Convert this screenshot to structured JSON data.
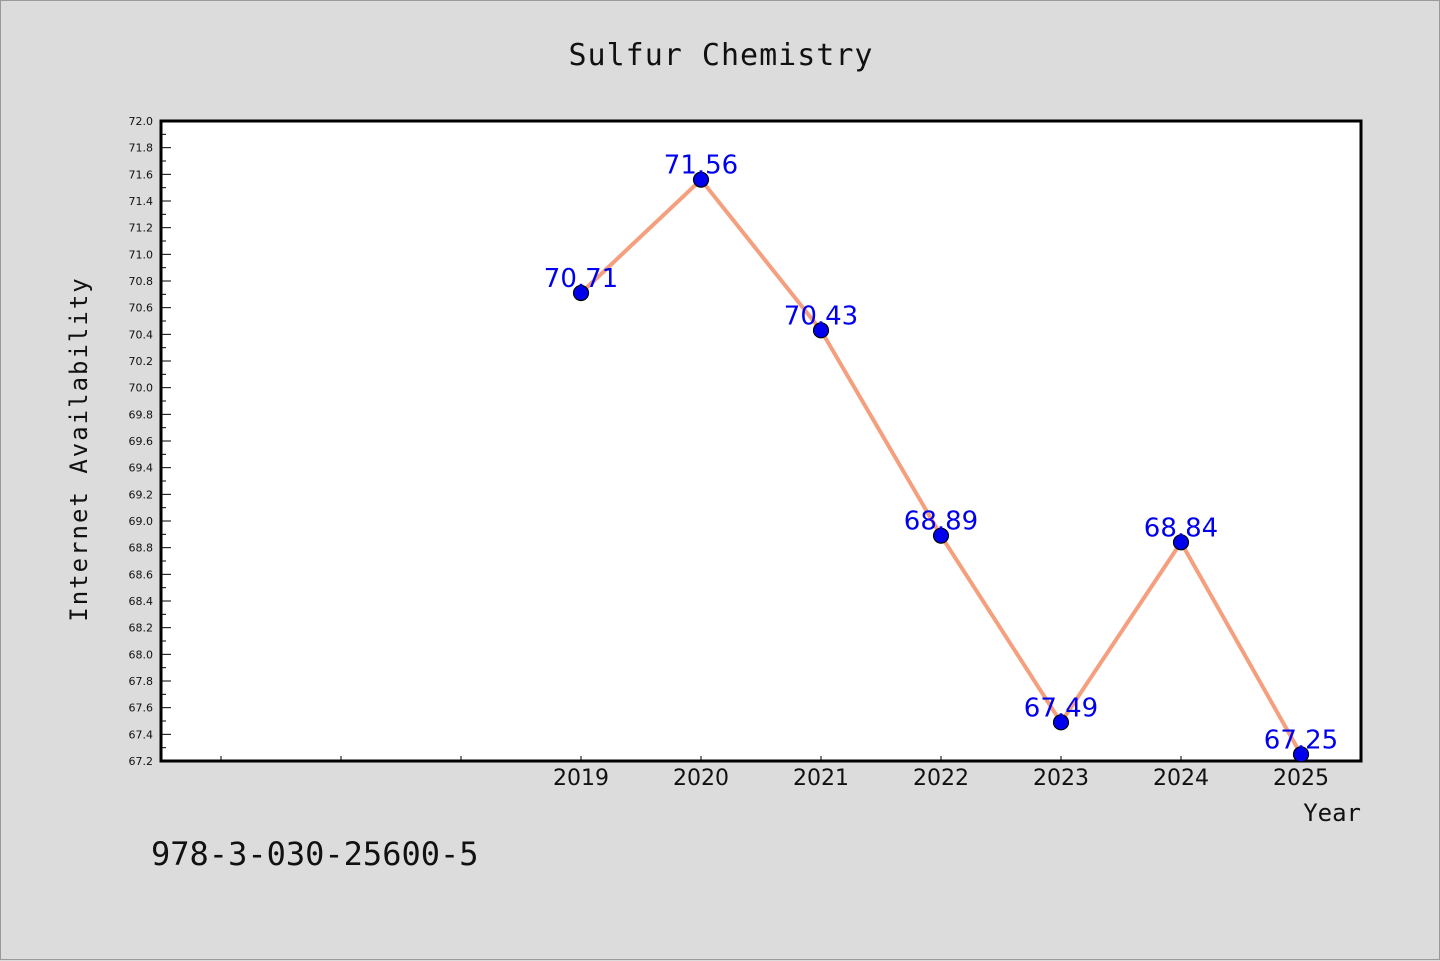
{
  "chart_data": {
    "type": "line",
    "title": "Sulfur Chemistry",
    "xlabel": "Year",
    "ylabel": "Internet Availability",
    "x": [
      "2019",
      "2020",
      "2021",
      "2022",
      "2023",
      "2024",
      "2025"
    ],
    "values": [
      70.71,
      71.56,
      70.43,
      68.89,
      67.49,
      68.84,
      67.25
    ],
    "data_labels": [
      "70.71",
      "71.56",
      "70.43",
      "68.89",
      "67.49",
      "68.84",
      "67.25"
    ],
    "ylim": [
      67.2,
      72.0
    ],
    "yticks": [
      "67.2",
      "67.4",
      "67.6",
      "67.8",
      "68.0",
      "68.2",
      "68.4",
      "68.6",
      "68.8",
      "69.0",
      "69.2",
      "69.4",
      "69.6",
      "69.8",
      "70.0",
      "70.2",
      "70.4",
      "70.6",
      "70.8",
      "71.0",
      "71.2",
      "71.4",
      "71.6",
      "71.8",
      "72.0"
    ],
    "grid": false,
    "line_color": "#f4a07e",
    "marker_color": "#0000ee",
    "label_color": "#0000ee"
  },
  "footer": {
    "isbn": "978-3-030-25600-5"
  }
}
